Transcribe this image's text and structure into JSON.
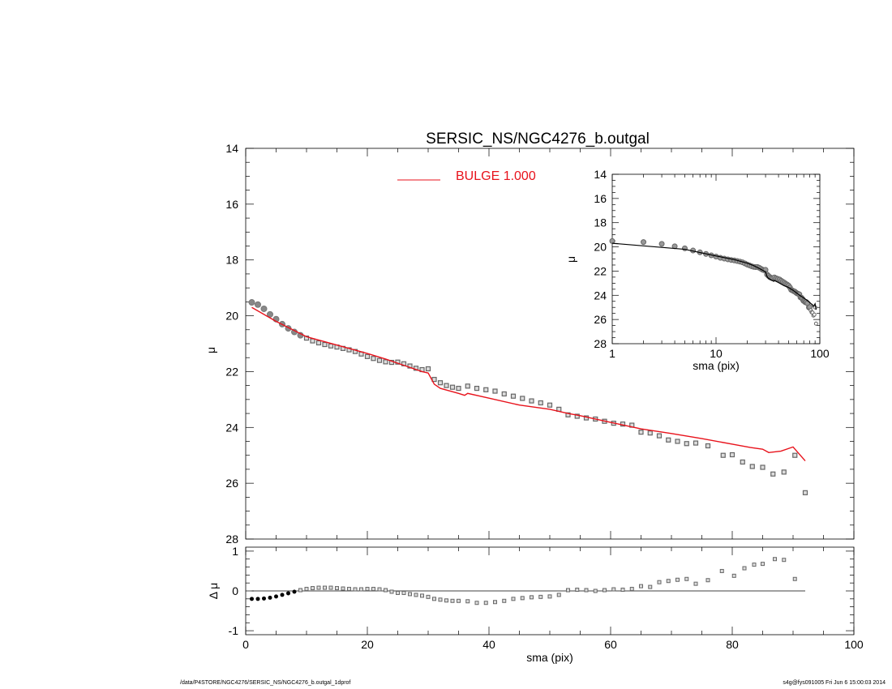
{
  "chart_data": [
    {
      "type": "scatter",
      "panel": "main",
      "title": "SERSIC_NS/NGC4276_b.outgal",
      "xlabel": "",
      "ylabel": "μ",
      "xlim": [
        0,
        100
      ],
      "ylim": [
        28,
        14
      ],
      "y_inverted": true,
      "x_ticks": [
        "0",
        "20",
        "40",
        "60",
        "80",
        "100"
      ],
      "y_ticks": [
        "14",
        "16",
        "18",
        "20",
        "22",
        "24",
        "26",
        "28"
      ],
      "legend": {
        "label": "BULGE  1.000",
        "color": "#e8121b",
        "placement": "top-center"
      },
      "observed": {
        "color": "#808080",
        "x": [
          1,
          2,
          3,
          4,
          5,
          6,
          7,
          8,
          9,
          10,
          11,
          12,
          13,
          14,
          15,
          16,
          17,
          18,
          19,
          20,
          21,
          22,
          23,
          24,
          25,
          26,
          27,
          28,
          29,
          30,
          31,
          32,
          33,
          34,
          35,
          36.5,
          38,
          39.5,
          41,
          42.5,
          44,
          45.5,
          47,
          48.5,
          50,
          51.5,
          53,
          54.5,
          56,
          57.5,
          59,
          60.5,
          62,
          63.5,
          65,
          66.5,
          68,
          69.5,
          71,
          72.5,
          74,
          76,
          78.5,
          80,
          81.7,
          83.3,
          85,
          86.7,
          88.5,
          90.3,
          92
        ],
        "mu": [
          19.52,
          19.6,
          19.75,
          19.95,
          20.12,
          20.3,
          20.45,
          20.58,
          20.7,
          20.8,
          20.9,
          20.97,
          21.03,
          21.08,
          21.12,
          21.17,
          21.22,
          21.28,
          21.37,
          21.46,
          21.53,
          21.6,
          21.65,
          21.67,
          21.66,
          21.72,
          21.8,
          21.88,
          21.93,
          21.9,
          22.28,
          22.4,
          22.5,
          22.56,
          22.6,
          22.52,
          22.6,
          22.65,
          22.7,
          22.8,
          22.88,
          22.96,
          23.05,
          23.12,
          23.2,
          23.35,
          23.55,
          23.6,
          23.66,
          23.7,
          23.78,
          23.85,
          23.88,
          23.92,
          24.17,
          24.2,
          24.3,
          24.45,
          24.5,
          24.58,
          24.56,
          24.66,
          25.0,
          24.98,
          25.24,
          25.4,
          25.43,
          25.67,
          25.6,
          25.0,
          26.34
        ]
      },
      "model": {
        "color": "#e8121b",
        "x": [
          1,
          5,
          10,
          15,
          20,
          23,
          25,
          27,
          29,
          30,
          31,
          32,
          35,
          36,
          36.5,
          40,
          45,
          50,
          53,
          55,
          60,
          65,
          70,
          75,
          80,
          83,
          85,
          86,
          88,
          90,
          92
        ],
        "mu": [
          19.7,
          20.2,
          20.75,
          21.05,
          21.35,
          21.55,
          21.7,
          21.85,
          22.0,
          22.05,
          22.45,
          22.6,
          22.78,
          22.85,
          22.78,
          22.95,
          23.2,
          23.35,
          23.5,
          23.58,
          23.82,
          24.05,
          24.22,
          24.4,
          24.6,
          24.72,
          24.78,
          24.9,
          24.85,
          24.7,
          25.2
        ]
      }
    },
    {
      "type": "scatter",
      "panel": "residual",
      "xlabel": "sma (pix)",
      "ylabel": "Δ μ",
      "xlim": [
        0,
        100
      ],
      "ylim": [
        -1.1,
        1.1
      ],
      "y_ticks": [
        "1",
        "0",
        "-1"
      ],
      "x": [
        1,
        2,
        3,
        4,
        5,
        6,
        7,
        8,
        9,
        10,
        11,
        12,
        13,
        14,
        15,
        16,
        17,
        18,
        19,
        20,
        21,
        22,
        23,
        24,
        25,
        26,
        27,
        28,
        29,
        30,
        31,
        32,
        33,
        34,
        35,
        36.5,
        38,
        39.5,
        41,
        42.5,
        44,
        45.5,
        47,
        48.5,
        50,
        51.5,
        53,
        54.5,
        56,
        57.5,
        59,
        60.5,
        62,
        63.5,
        65,
        66.5,
        68,
        69.5,
        71,
        72.5,
        74,
        76,
        78.3,
        80.3,
        82,
        83.6,
        85,
        87,
        88.5,
        90.3
      ],
      "delta_mu": [
        -0.2,
        -0.2,
        -0.19,
        -0.17,
        -0.14,
        -0.1,
        -0.06,
        -0.02,
        0.02,
        0.05,
        0.07,
        0.08,
        0.08,
        0.08,
        0.07,
        0.06,
        0.05,
        0.04,
        0.04,
        0.05,
        0.05,
        0.04,
        0.02,
        -0.02,
        -0.05,
        -0.05,
        -0.08,
        -0.1,
        -0.12,
        -0.15,
        -0.2,
        -0.22,
        -0.24,
        -0.25,
        -0.25,
        -0.26,
        -0.3,
        -0.3,
        -0.28,
        -0.25,
        -0.2,
        -0.18,
        -0.16,
        -0.15,
        -0.14,
        -0.1,
        0.02,
        0.03,
        0.02,
        0.0,
        0.02,
        0.04,
        0.03,
        0.05,
        0.12,
        0.1,
        0.22,
        0.25,
        0.28,
        0.3,
        0.18,
        0.27,
        0.5,
        0.38,
        0.57,
        0.66,
        0.68,
        0.8,
        0.78,
        0.3
      ]
    },
    {
      "type": "scatter",
      "panel": "inset",
      "xlabel": "sma (pix)",
      "ylabel": "μ",
      "x_scale": "log",
      "xlim": [
        1,
        100
      ],
      "ylim": [
        28,
        14
      ],
      "x_ticks": [
        "1",
        "10",
        "100"
      ],
      "y_ticks": [
        "14",
        "16",
        "18",
        "20",
        "22",
        "24",
        "26",
        "28"
      ],
      "line_color": "#000000"
    }
  ],
  "footer": {
    "path": "/data/P4STORE/NGC4276/SERSIC_NS/NGC4276_b.outgal_1dprof",
    "stamp": "s4g@fys091005  Fri Jun  6 15:00:03 2014"
  }
}
